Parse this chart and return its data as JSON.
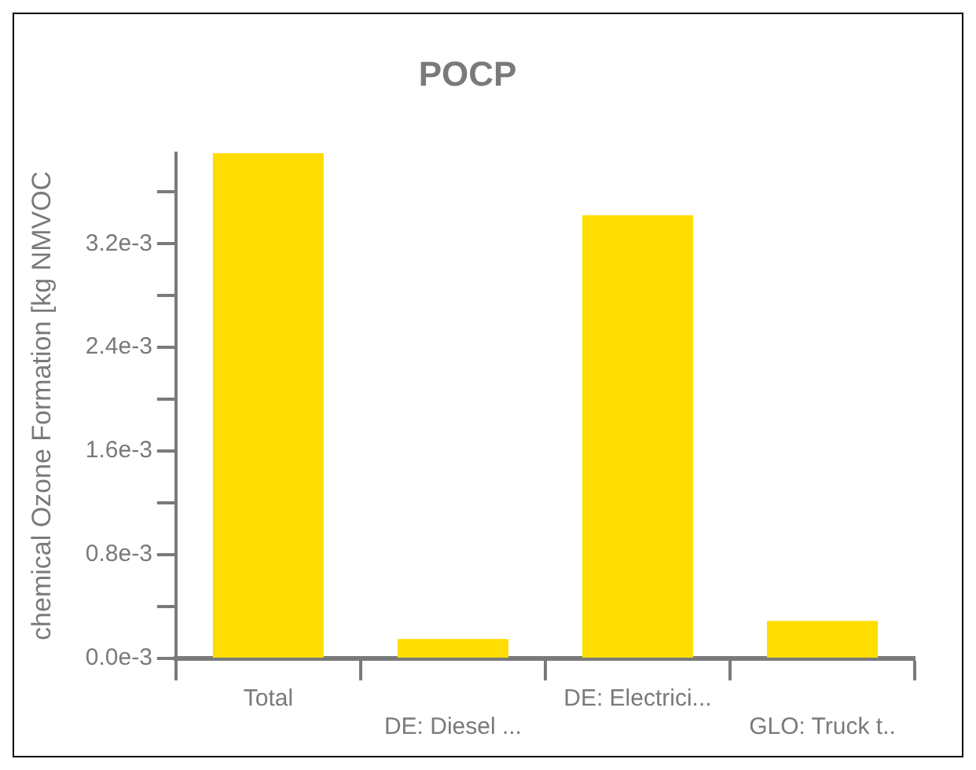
{
  "chart_data": {
    "type": "bar",
    "title": "POCP",
    "ylabel": "chemical Ozone Formation [kg NMVOC",
    "categories": [
      "Total",
      "DE: Diesel ...",
      "DE: Electrici...",
      "GLO: Truck t.."
    ],
    "values": [
      0.0039,
      0.00015,
      0.00342,
      0.00029
    ],
    "color": "#ffdd00",
    "ylim": [
      0,
      0.0039
    ],
    "yticks": [
      {
        "value": 0,
        "label": "0.0e-3"
      },
      {
        "value": 0.0004,
        "label": null
      },
      {
        "value": 0.0008,
        "label": "0.8e-3"
      },
      {
        "value": 0.0012,
        "label": null
      },
      {
        "value": 0.0016,
        "label": "1.6e-3"
      },
      {
        "value": 0.002,
        "label": null
      },
      {
        "value": 0.0024,
        "label": "2.4e-3"
      },
      {
        "value": 0.0028,
        "label": null
      },
      {
        "value": 0.0032,
        "label": "3.2e-3"
      },
      {
        "value": 0.0036,
        "label": null
      }
    ],
    "grid": false,
    "legend": false
  }
}
